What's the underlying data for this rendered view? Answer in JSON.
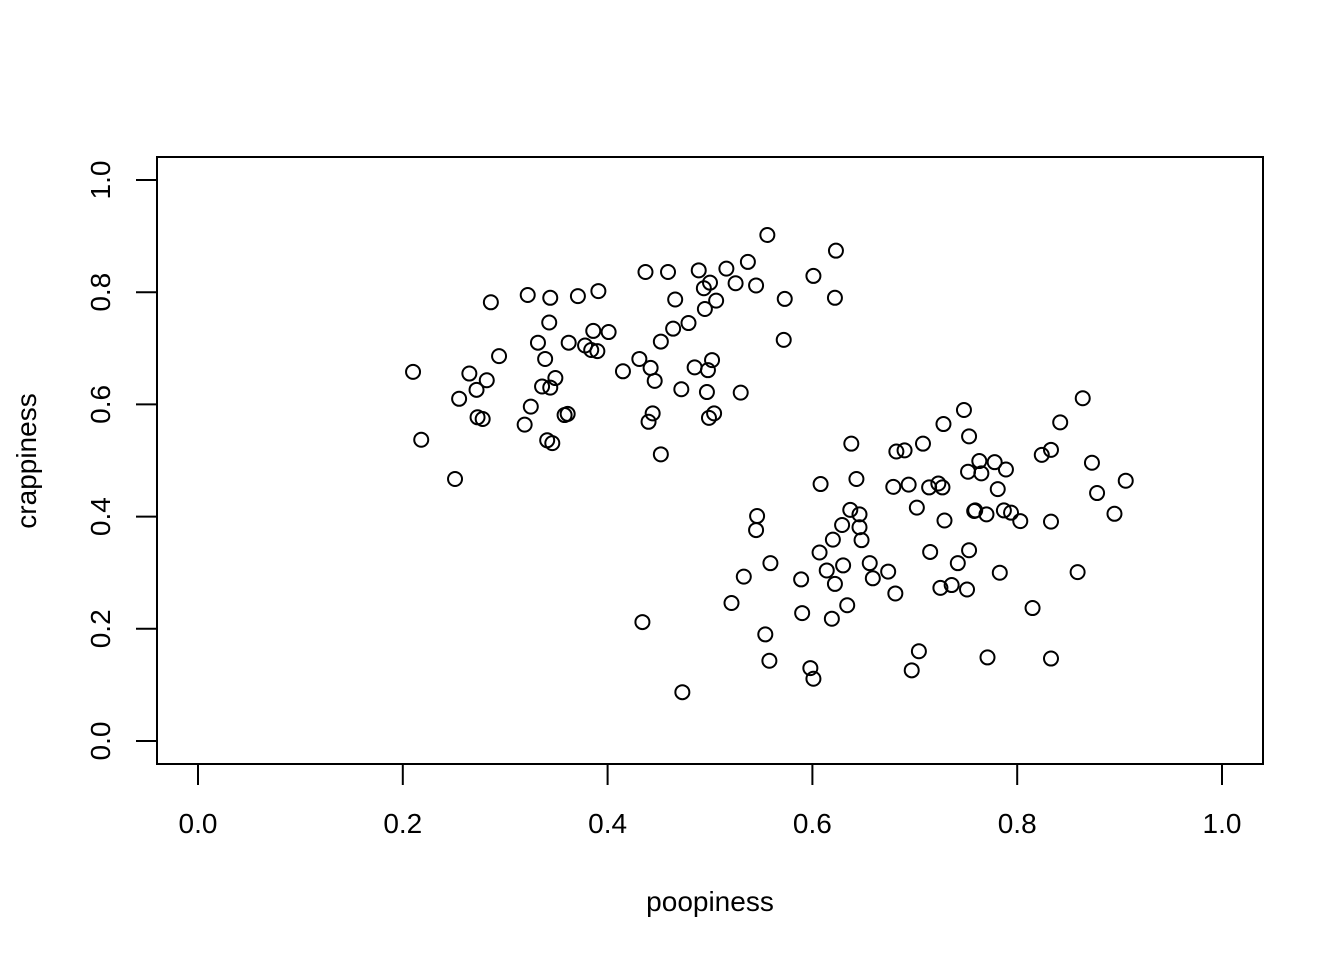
{
  "chart_data": {
    "type": "scatter",
    "xlabel": "poopiness",
    "ylabel": "crappiness",
    "xlim": [
      0.0,
      1.0
    ],
    "ylim": [
      0.0,
      1.0
    ],
    "xticks": [
      "0.0",
      "0.2",
      "0.4",
      "0.6",
      "0.8",
      "1.0"
    ],
    "yticks": [
      "0.0",
      "0.2",
      "0.4",
      "0.6",
      "0.8",
      "1.0"
    ],
    "grid": false,
    "marker": "open-circle",
    "series": [
      {
        "points": [
          [
            0.21,
            0.658
          ],
          [
            0.218,
            0.537
          ],
          [
            0.251,
            0.467
          ],
          [
            0.255,
            0.61
          ],
          [
            0.265,
            0.655
          ],
          [
            0.272,
            0.626
          ],
          [
            0.273,
            0.577
          ],
          [
            0.278,
            0.574
          ],
          [
            0.282,
            0.643
          ],
          [
            0.286,
            0.782
          ],
          [
            0.294,
            0.686
          ],
          [
            0.319,
            0.564
          ],
          [
            0.322,
            0.795
          ],
          [
            0.325,
            0.596
          ],
          [
            0.332,
            0.71
          ],
          [
            0.336,
            0.632
          ],
          [
            0.339,
            0.681
          ],
          [
            0.341,
            0.536
          ],
          [
            0.343,
            0.746
          ],
          [
            0.344,
            0.79
          ],
          [
            0.344,
            0.63
          ],
          [
            0.346,
            0.531
          ],
          [
            0.349,
            0.647
          ],
          [
            0.358,
            0.581
          ],
          [
            0.361,
            0.583
          ],
          [
            0.362,
            0.71
          ],
          [
            0.371,
            0.793
          ],
          [
            0.378,
            0.705
          ],
          [
            0.384,
            0.697
          ],
          [
            0.386,
            0.731
          ],
          [
            0.39,
            0.695
          ],
          [
            0.391,
            0.802
          ],
          [
            0.401,
            0.729
          ],
          [
            0.415,
            0.659
          ],
          [
            0.431,
            0.681
          ],
          [
            0.437,
            0.836
          ],
          [
            0.44,
            0.569
          ],
          [
            0.442,
            0.665
          ],
          [
            0.444,
            0.584
          ],
          [
            0.446,
            0.642
          ],
          [
            0.452,
            0.712
          ],
          [
            0.452,
            0.511
          ],
          [
            0.459,
            0.836
          ],
          [
            0.464,
            0.735
          ],
          [
            0.466,
            0.787
          ],
          [
            0.472,
            0.627
          ],
          [
            0.479,
            0.745
          ],
          [
            0.485,
            0.666
          ],
          [
            0.489,
            0.839
          ],
          [
            0.494,
            0.807
          ],
          [
            0.495,
            0.77
          ],
          [
            0.497,
            0.622
          ],
          [
            0.498,
            0.661
          ],
          [
            0.499,
            0.576
          ],
          [
            0.5,
            0.817
          ],
          [
            0.502,
            0.679
          ],
          [
            0.504,
            0.584
          ],
          [
            0.506,
            0.785
          ],
          [
            0.516,
            0.842
          ],
          [
            0.525,
            0.816
          ],
          [
            0.53,
            0.621
          ],
          [
            0.537,
            0.854
          ],
          [
            0.545,
            0.812
          ],
          [
            0.556,
            0.902
          ],
          [
            0.573,
            0.788
          ],
          [
            0.572,
            0.715
          ],
          [
            0.601,
            0.829
          ],
          [
            0.622,
            0.79
          ],
          [
            0.623,
            0.874
          ],
          [
            0.434,
            0.212
          ],
          [
            0.473,
            0.087
          ]
        ]
      },
      {
        "points": [
          [
            0.521,
            0.246
          ],
          [
            0.533,
            0.293
          ],
          [
            0.545,
            0.376
          ],
          [
            0.546,
            0.401
          ],
          [
            0.554,
            0.19
          ],
          [
            0.558,
            0.143
          ],
          [
            0.559,
            0.317
          ],
          [
            0.589,
            0.288
          ],
          [
            0.59,
            0.228
          ],
          [
            0.598,
            0.13
          ],
          [
            0.601,
            0.111
          ],
          [
            0.607,
            0.336
          ],
          [
            0.608,
            0.458
          ],
          [
            0.614,
            0.304
          ],
          [
            0.619,
            0.218
          ],
          [
            0.62,
            0.359
          ],
          [
            0.622,
            0.28
          ],
          [
            0.629,
            0.385
          ],
          [
            0.63,
            0.313
          ],
          [
            0.634,
            0.242
          ],
          [
            0.637,
            0.412
          ],
          [
            0.638,
            0.53
          ],
          [
            0.643,
            0.467
          ],
          [
            0.646,
            0.404
          ],
          [
            0.646,
            0.381
          ],
          [
            0.648,
            0.358
          ],
          [
            0.656,
            0.317
          ],
          [
            0.659,
            0.29
          ],
          [
            0.674,
            0.302
          ],
          [
            0.679,
            0.453
          ],
          [
            0.681,
            0.263
          ],
          [
            0.682,
            0.516
          ],
          [
            0.69,
            0.518
          ],
          [
            0.694,
            0.457
          ],
          [
            0.697,
            0.126
          ],
          [
            0.702,
            0.416
          ],
          [
            0.704,
            0.16
          ],
          [
            0.708,
            0.53
          ],
          [
            0.714,
            0.452
          ],
          [
            0.715,
            0.337
          ],
          [
            0.723,
            0.459
          ],
          [
            0.725,
            0.273
          ],
          [
            0.727,
            0.452
          ],
          [
            0.728,
            0.565
          ],
          [
            0.729,
            0.393
          ],
          [
            0.736,
            0.278
          ],
          [
            0.742,
            0.317
          ],
          [
            0.748,
            0.59
          ],
          [
            0.751,
            0.27
          ],
          [
            0.752,
            0.48
          ],
          [
            0.753,
            0.543
          ],
          [
            0.753,
            0.34
          ],
          [
            0.758,
            0.41
          ],
          [
            0.759,
            0.411
          ],
          [
            0.763,
            0.499
          ],
          [
            0.765,
            0.477
          ],
          [
            0.77,
            0.404
          ],
          [
            0.771,
            0.149
          ],
          [
            0.778,
            0.497
          ],
          [
            0.781,
            0.449
          ],
          [
            0.783,
            0.3
          ],
          [
            0.787,
            0.411
          ],
          [
            0.789,
            0.484
          ],
          [
            0.794,
            0.407
          ],
          [
            0.803,
            0.392
          ],
          [
            0.815,
            0.237
          ],
          [
            0.824,
            0.51
          ],
          [
            0.833,
            0.519
          ],
          [
            0.833,
            0.391
          ],
          [
            0.833,
            0.147
          ],
          [
            0.842,
            0.568
          ],
          [
            0.859,
            0.301
          ],
          [
            0.864,
            0.611
          ],
          [
            0.873,
            0.496
          ],
          [
            0.878,
            0.442
          ],
          [
            0.895,
            0.405
          ],
          [
            0.906,
            0.464
          ]
        ]
      }
    ]
  }
}
